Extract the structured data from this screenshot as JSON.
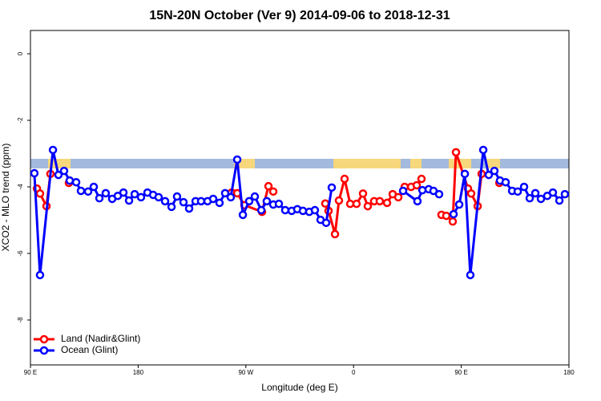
{
  "chart_data": {
    "type": "line",
    "title": "15N-20N October (Ver 9)   2014-09-06 to 2018-12-31",
    "x_label": "Longitude (deg E)",
    "y_label": "XCO2 - MLO trend (ppm)",
    "xlim": [
      90,
      540
    ],
    "ylim": [
      -9.35,
      0.7
    ],
    "xticks": [
      {
        "value": 90,
        "label": "90 E"
      },
      180,
      {
        "value": 270,
        "label": "90 W"
      },
      {
        "value": 360,
        "label": "0"
      },
      {
        "value": 450,
        "label": "90 E"
      },
      {
        "value": 540,
        "label": "180"
      }
    ],
    "yticks": [
      0,
      -2,
      -4,
      -6,
      -8
    ],
    "legend": "bottom-left",
    "series": [
      {
        "name": "Land (Nadir&Glint)",
        "color": "#ff0000",
        "x": [
          95.4,
          98.0,
          103.4,
          106.7,
          null,
          122.1,
          null,
          258.1,
          262.8,
          268.8,
          283.5,
          288.9,
          292.9,
          null,
          336.4,
          339.1,
          344.5,
          347.8,
          352.5,
          357.2,
          362.5,
          367.9,
          371.9,
          377.2,
          381.9,
          388.0,
          392.7,
          397.4,
          402.7,
          408.1,
          412.8,
          416.8,
          null,
          433.5,
          437.5,
          442.9,
          445.6,
          455.6,
          458.3,
          463.7,
          467.0,
          null,
          481.8
        ],
        "values": [
          -4.05,
          -4.2,
          -4.58,
          -3.61,
          null,
          -3.88,
          null,
          -4.17,
          -4.19,
          -4.55,
          -4.75,
          -3.98,
          -4.14,
          null,
          -4.5,
          -4.72,
          -5.42,
          -4.41,
          -3.76,
          -4.51,
          -4.51,
          -4.2,
          -4.58,
          -4.43,
          -4.43,
          -4.48,
          -4.22,
          -4.31,
          -4.0,
          -4.0,
          -3.95,
          -3.76,
          null,
          -4.84,
          -4.87,
          -5.04,
          -2.96,
          -4.05,
          -4.2,
          -4.58,
          -3.61,
          null,
          -3.88
        ]
      },
      {
        "name": "Ocean (Glint)",
        "color": "#0000ff",
        "x": [
          93.3,
          98.0,
          108.8,
          113.4,
          118.1,
          122.8,
          128.2,
          132.2,
          138.2,
          142.9,
          147.6,
          152.9,
          158.3,
          163.0,
          167.7,
          172.4,
          177.1,
          182.4,
          187.8,
          192.5,
          197.1,
          202.5,
          207.9,
          212.5,
          217.9,
          222.6,
          228.0,
          232.6,
          238.0,
          242.7,
          248.0,
          252.7,
          257.4,
          262.8,
          267.5,
          272.8,
          277.5,
          282.9,
          287.5,
          292.9,
          297.6,
          302.9,
          308.3,
          313.0,
          317.7,
          323.0,
          327.7,
          332.4,
          337.1,
          341.8,
          null,
          401.4,
          413.4,
          417.5,
          422.8,
          426.8,
          431.5,
          null,
          443.6,
          448.3,
          453.0,
          457.6,
          468.4,
          473.0,
          477.7,
          482.4,
          487.1,
          492.5,
          497.2,
          502.5,
          507.2,
          511.9,
          516.6,
          521.9,
          526.6,
          532.0,
          536.6
        ],
        "values": [
          -3.59,
          -6.65,
          -2.89,
          -3.64,
          -3.52,
          -3.81,
          -3.86,
          -4.12,
          -4.14,
          -4.0,
          -4.34,
          -4.19,
          -4.36,
          -4.27,
          -4.17,
          -4.41,
          -4.22,
          -4.31,
          -4.17,
          -4.24,
          -4.31,
          -4.43,
          -4.6,
          -4.29,
          -4.46,
          -4.65,
          -4.43,
          -4.43,
          -4.43,
          -4.36,
          -4.48,
          -4.19,
          -4.31,
          -3.18,
          -4.84,
          -4.43,
          -4.29,
          -4.7,
          -4.43,
          -4.53,
          -4.51,
          -4.7,
          -4.72,
          -4.67,
          -4.72,
          -4.75,
          -4.7,
          -4.99,
          -5.08,
          -4.02,
          null,
          -4.12,
          -4.43,
          -4.1,
          -4.07,
          -4.12,
          -4.22,
          null,
          -4.82,
          -4.53,
          -3.61,
          -6.65,
          -2.89,
          -3.64,
          -3.52,
          -3.81,
          -3.86,
          -4.12,
          -4.14,
          -4.0,
          -4.34,
          -4.19,
          -4.36,
          -4.27,
          -4.17,
          -4.41,
          -4.22
        ]
      }
    ]
  }
}
